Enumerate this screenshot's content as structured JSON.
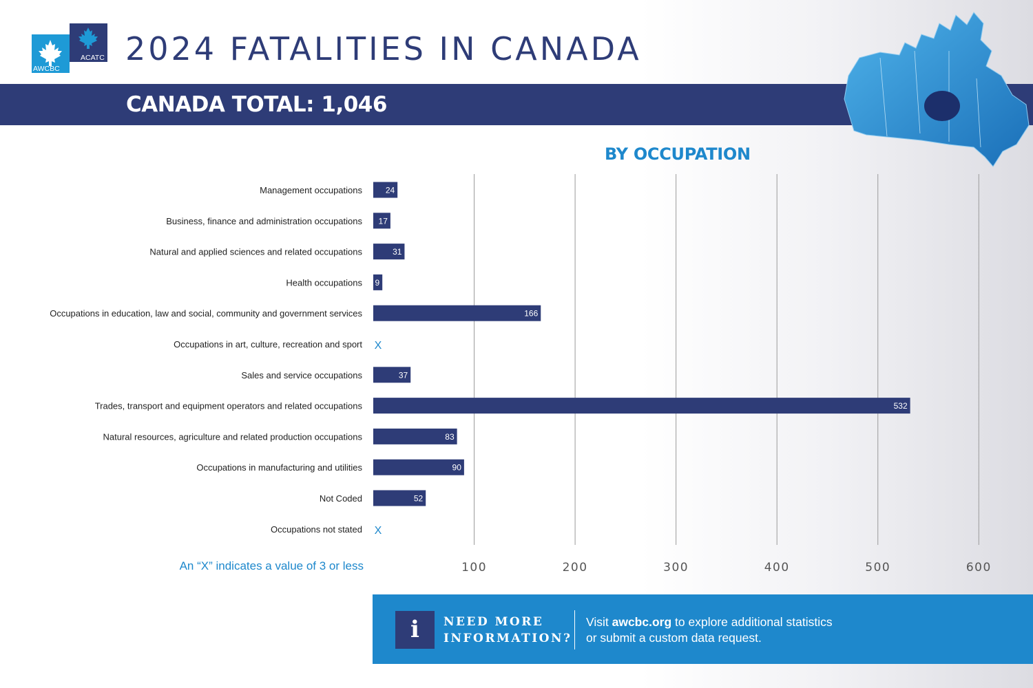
{
  "header": {
    "title": "2024 FATALITIES IN CANADA",
    "total": "CANADA TOTAL: 1,046",
    "logo_left": "AWCBC",
    "logo_right": "ACATC"
  },
  "note": "An “X” indicates a value of 3 or less",
  "info": {
    "icon": "i",
    "heading_line1": "NEED MORE",
    "heading_line2": "INFORMATION?",
    "text_pre": "Visit ",
    "text_link": "awcbc.org",
    "text_post": " to explore additional statistics",
    "text_line2": "or submit a custom data request."
  },
  "colors": {
    "navy": "#2e3c77",
    "accent_blue": "#1e88cc",
    "map_blue": "#2a94d6"
  },
  "icons": [
    "maple-leaf-icon",
    "canada-map-icon",
    "info-icon"
  ],
  "chart_data": {
    "type": "bar",
    "orientation": "horizontal",
    "title": "BY OCCUPATION",
    "categories": [
      "Management occupations",
      "Business, finance and administration occupations",
      "Natural and applied sciences and related occupations",
      "Health occupations",
      "Occupations in education, law and social, community and government services",
      "Occupations in art, culture, recreation and sport",
      "Sales and service occupations",
      "Trades, transport and equipment operators and related occupations",
      "Natural resources, agriculture and related production occupations",
      "Occupations in manufacturing and utilities",
      "Not Coded",
      "Occupations not stated"
    ],
    "values": [
      24,
      17,
      31,
      9,
      166,
      null,
      37,
      532,
      83,
      90,
      52,
      null
    ],
    "value_labels": [
      "24",
      "17",
      "31",
      "9",
      "166",
      "X",
      "37",
      "532",
      "83",
      "90",
      "52",
      "X"
    ],
    "xlim": [
      0,
      600
    ],
    "xticks": [
      100,
      200,
      300,
      400,
      500,
      600
    ],
    "grid": true,
    "legend": "none"
  }
}
